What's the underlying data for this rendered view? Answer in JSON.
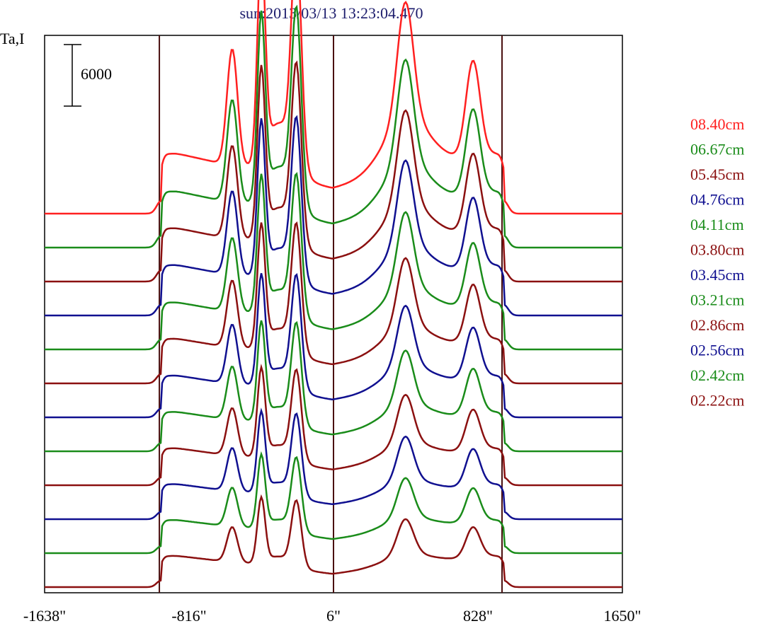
{
  "chart_data": {
    "type": "line",
    "title": "sun:2013/03/13 13:23:04.470",
    "ylabel": "Ta,I",
    "x_ticks": [
      {
        "value": -1638,
        "label": "-1638\""
      },
      {
        "value": -816,
        "label": "-816\""
      },
      {
        "value": 6,
        "label": "6\""
      },
      {
        "value": 828,
        "label": "828\""
      },
      {
        "value": 1650,
        "label": "1650\""
      }
    ],
    "xlim": [
      -1638,
      1650
    ],
    "vertical_lines": [
      -985,
      6,
      965
    ],
    "scale_bar": {
      "value": 6000,
      "label": "6000"
    },
    "colors": {
      "red": "#ff2020",
      "green": "#1a8c1a",
      "maroon": "#8b1010",
      "blue": "#101090",
      "axis": "#000000",
      "vline": "#4a1010",
      "title": "#1c1c6c"
    },
    "series": [
      {
        "name": "08.40cm",
        "color": "#ff2020",
        "peak_scale": 1.0
      },
      {
        "name": "06.67cm",
        "color": "#1a8c1a",
        "peak_scale": 0.92
      },
      {
        "name": "05.45cm",
        "color": "#8b1010",
        "peak_scale": 0.86
      },
      {
        "name": "04.76cm",
        "color": "#101090",
        "peak_scale": 0.8
      },
      {
        "name": "04.11cm",
        "color": "#1a8c1a",
        "peak_scale": 0.73
      },
      {
        "name": "03.80cm",
        "color": "#8b1010",
        "peak_scale": 0.68
      },
      {
        "name": "03.45cm",
        "color": "#101090",
        "peak_scale": 0.62
      },
      {
        "name": "03.21cm",
        "color": "#1a8c1a",
        "peak_scale": 0.57
      },
      {
        "name": "02.86cm",
        "color": "#8b1010",
        "peak_scale": 0.52
      },
      {
        "name": "02.56cm",
        "color": "#101090",
        "peak_scale": 0.48
      },
      {
        "name": "02.42cm",
        "color": "#1a8c1a",
        "peak_scale": 0.44
      },
      {
        "name": "02.22cm",
        "color": "#8b1010",
        "peak_scale": 0.4
      }
    ]
  }
}
